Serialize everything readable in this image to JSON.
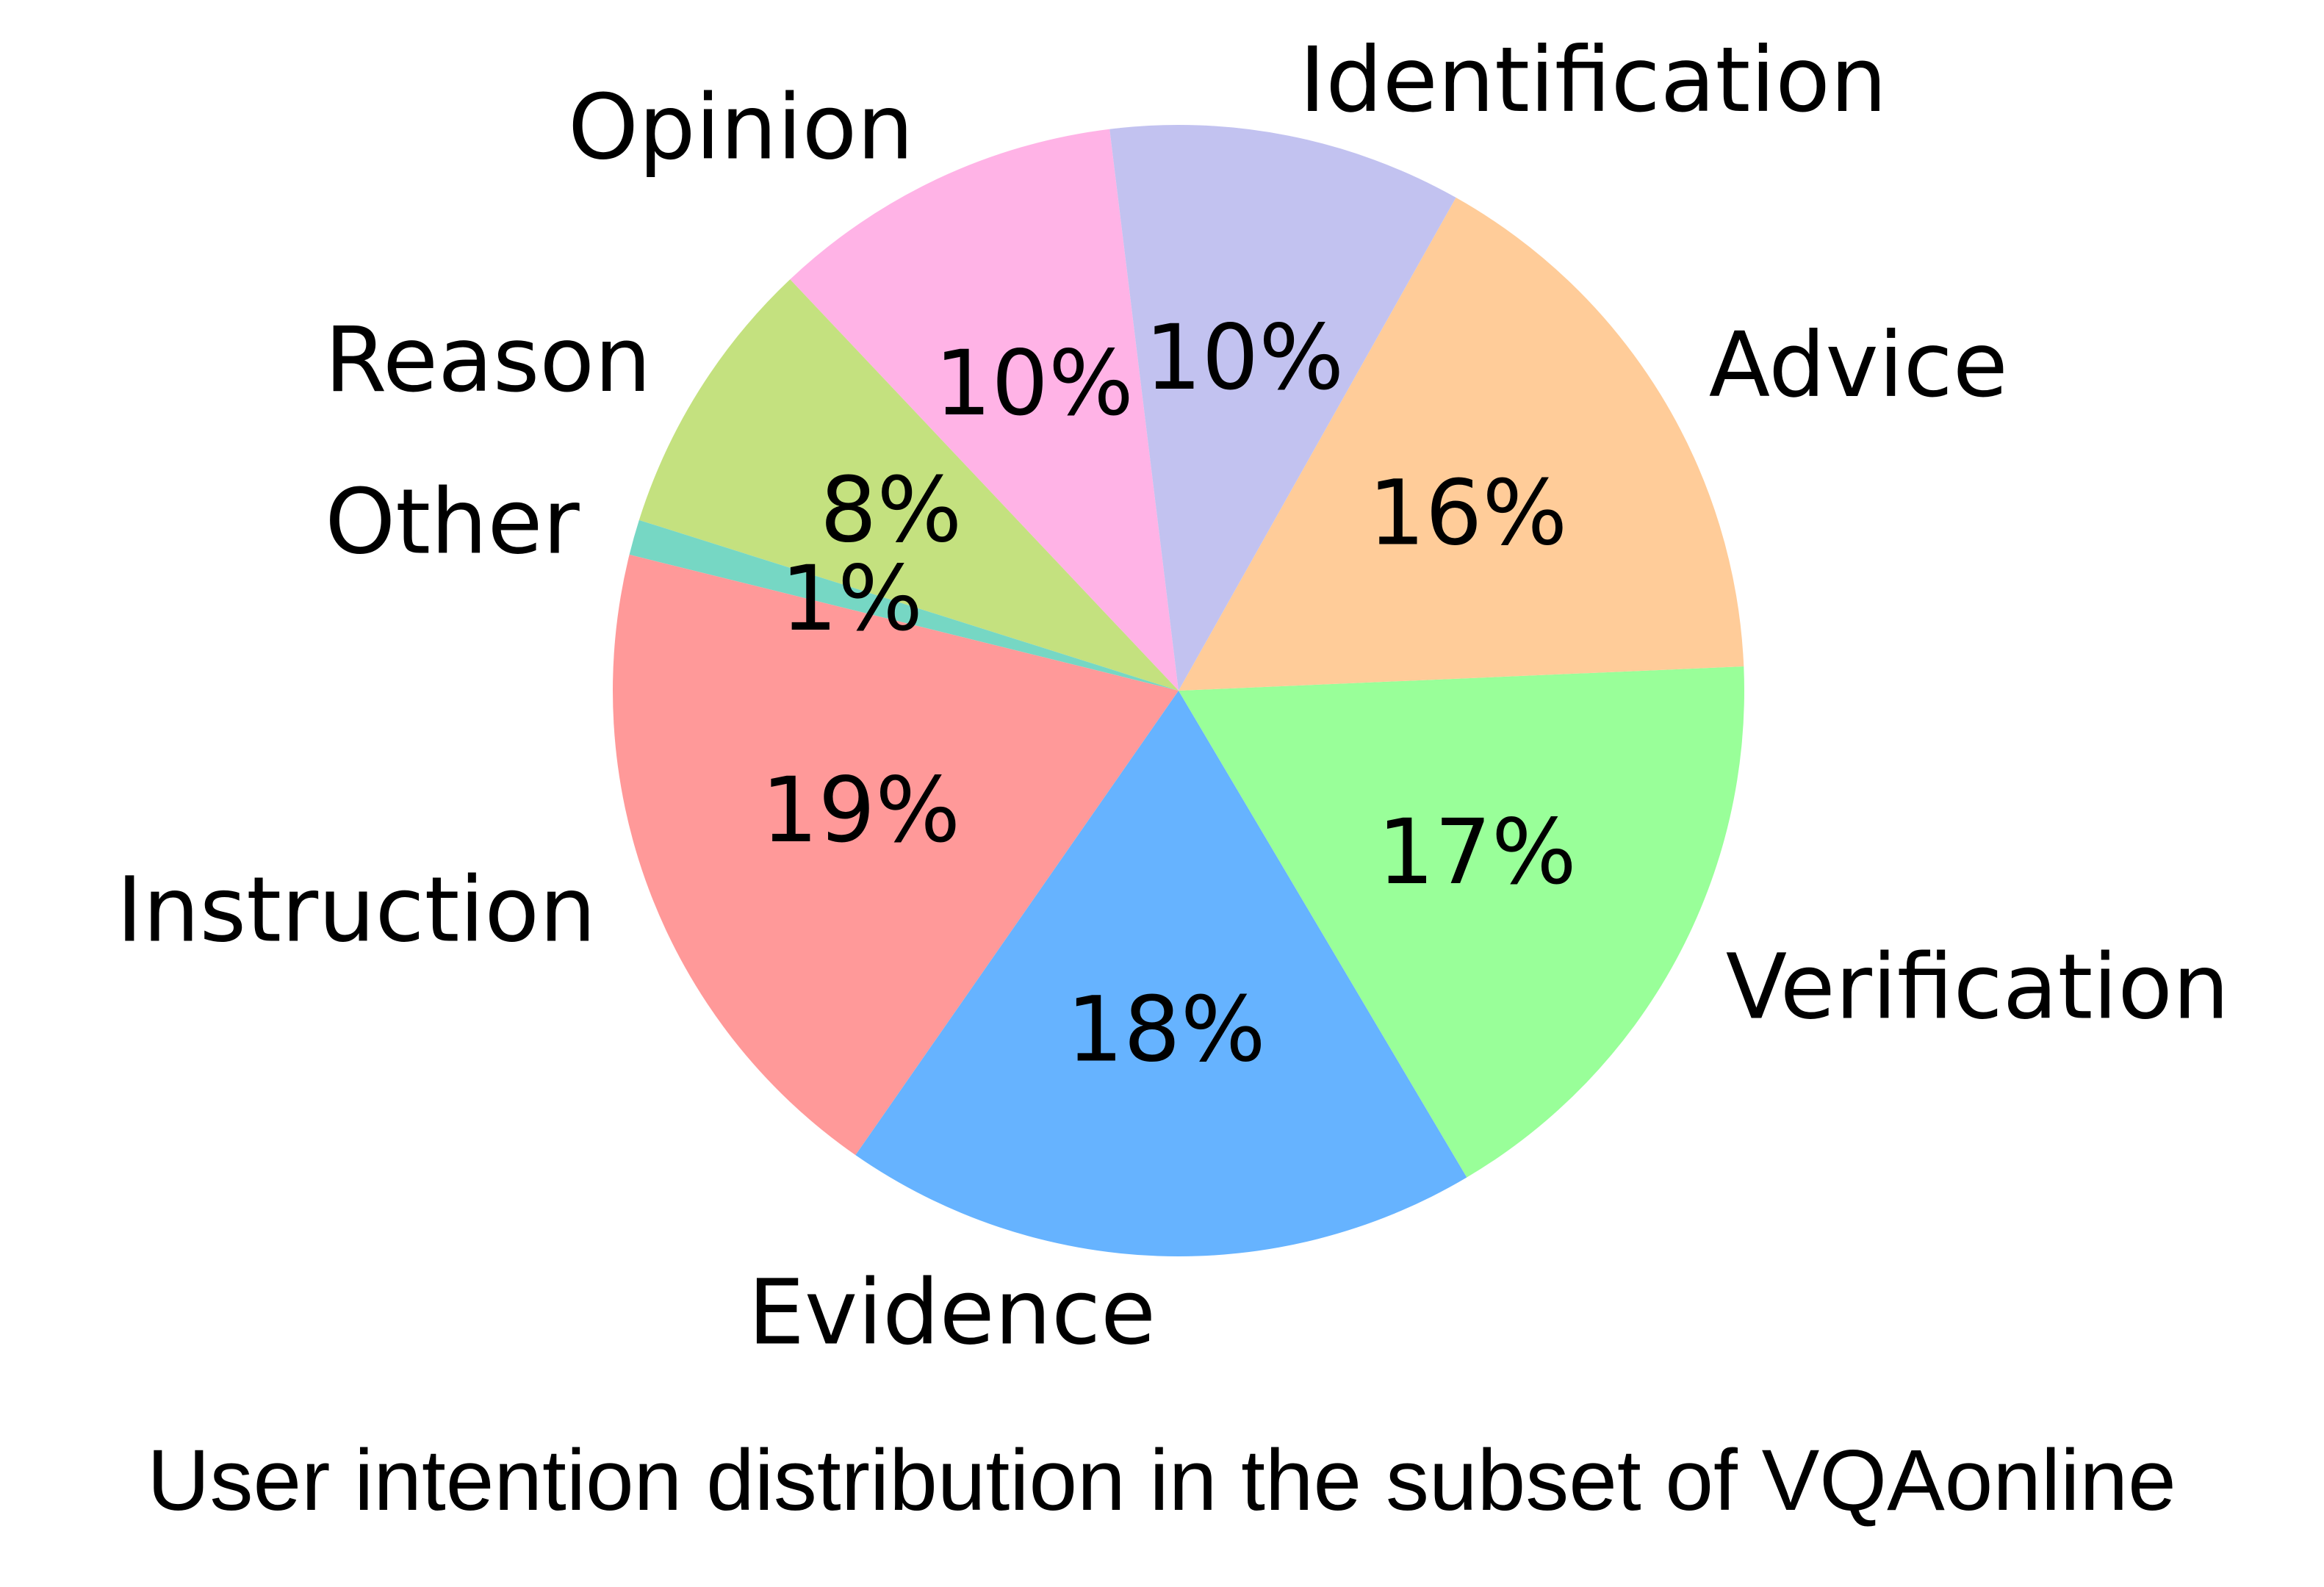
{
  "chart_data": {
    "type": "pie",
    "title": "User intention distribution in the subset of VQAonline",
    "autopct_format": "{v}%",
    "counterclockwise": true,
    "start_angle_deg": 97,
    "slices": [
      {
        "label": "Opinion",
        "value": 10,
        "color": "#ffb3e6"
      },
      {
        "label": "Reason",
        "value": 8,
        "color": "#c4e17f"
      },
      {
        "label": "Other",
        "value": 1,
        "color": "#76d7c4"
      },
      {
        "label": "Instruction",
        "value": 19,
        "color": "#ff9999"
      },
      {
        "label": "Evidence",
        "value": 18,
        "color": "#66b3ff"
      },
      {
        "label": "Verification",
        "value": 17,
        "color": "#99ff99"
      },
      {
        "label": "Advice",
        "value": 16,
        "color": "#ffcc99"
      },
      {
        "label": "Identification",
        "value": 10,
        "color": "#c2c2f0"
      }
    ]
  }
}
